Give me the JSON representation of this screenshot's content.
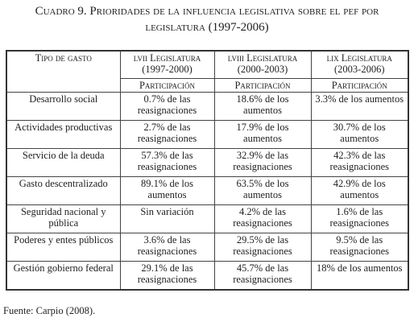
{
  "header": {
    "title": "Cuadro 9. Prioridades de la influencia legislativa sobre el pef por legislatura (1997-2006)"
  },
  "table": {
    "columns": [
      {
        "name": "Tipo de gasto"
      },
      {
        "name": "lvii Legislatura",
        "period": "(1997-2000)",
        "sub": "Participación"
      },
      {
        "name": "lviii Legislatura",
        "period": "(2000-2003)",
        "sub": "Participación"
      },
      {
        "name": "lix Legislatura",
        "period": "(2003-2006)",
        "sub": "Participación"
      }
    ],
    "rows": [
      {
        "label": "Desarrollo social",
        "cells": [
          "0.7% de las reasignaciones",
          "18.6% de los aumentos",
          "3.3% de los aumentos"
        ]
      },
      {
        "label": "Actividades productivas",
        "cells": [
          "2.7% de las reasignaciones",
          "17.9% de los aumentos",
          "30.7% de los aumentos"
        ]
      },
      {
        "label": "Servicio de la deuda",
        "cells": [
          "57.3% de las reasignaciones",
          "32.9% de las reasignaciones",
          "42.3% de las reasignaciones"
        ]
      },
      {
        "label": "Gasto descentralizado",
        "cells": [
          "89.1% de los aumentos",
          "63.5% de los aumentos",
          "42.9% de los aumentos"
        ]
      },
      {
        "label": "Seguridad nacional y pública",
        "cells": [
          "Sin variación",
          "4.2% de las reasignaciones",
          "1.6% de las reasignaciones"
        ]
      },
      {
        "label": "Poderes y entes públicos",
        "cells": [
          "3.6% de las reasignaciones",
          "29.5% de las reasignaciones",
          "9.5% de las reasignaciones"
        ]
      },
      {
        "label": "Gestión gobierno federal",
        "cells": [
          "29.1% de las reasignaciones",
          "45.7% de las reasignaciones",
          "18% de los aumentos"
        ]
      }
    ]
  },
  "footer": {
    "source": "Fuente: Carpio (2008)."
  }
}
